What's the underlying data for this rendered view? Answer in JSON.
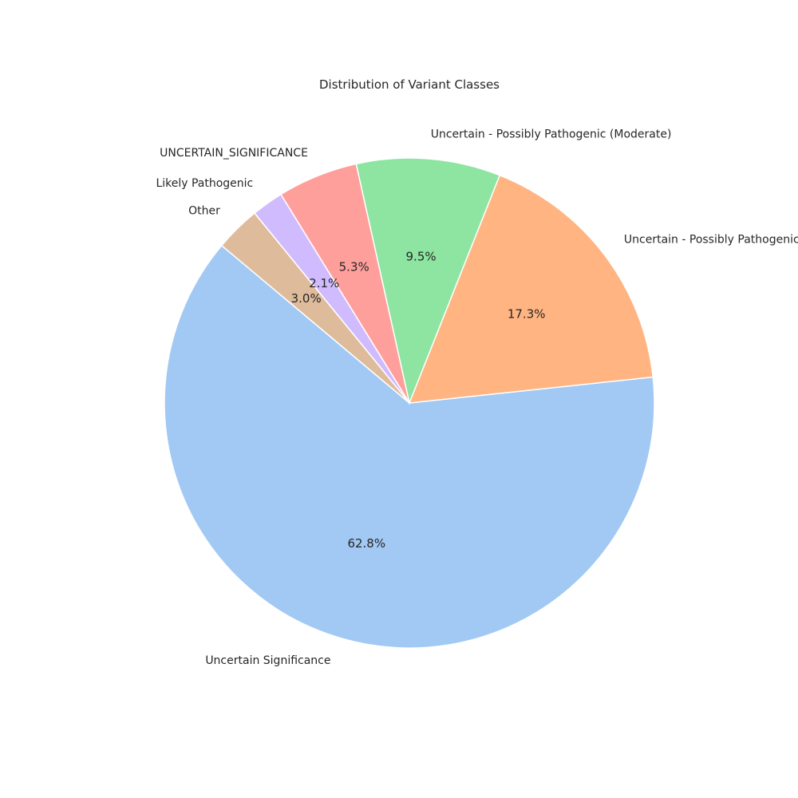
{
  "chart_data": {
    "type": "pie",
    "title": "Distribution of Variant Classes",
    "start_angle_deg": 140,
    "direction": "counterclockwise",
    "slices": [
      {
        "label": "Uncertain Significance",
        "value": 62.8,
        "pct_label": "62.8%",
        "color": "#a1c9f4"
      },
      {
        "label": "Uncertain - Possibly Pathogenic",
        "value": 17.3,
        "pct_label": "17.3%",
        "color": "#ffb482"
      },
      {
        "label": "Uncertain - Possibly Pathogenic (Moderate)",
        "value": 9.5,
        "pct_label": "9.5%",
        "color": "#8de5a1"
      },
      {
        "label": "UNCERTAIN_SIGNIFICANCE",
        "value": 5.3,
        "pct_label": "5.3%",
        "color": "#ff9f9b"
      },
      {
        "label": "Likely Pathogenic",
        "value": 2.1,
        "pct_label": "2.1%",
        "color": "#d0bbff"
      },
      {
        "label": "Other",
        "value": 3.0,
        "pct_label": "3.0%",
        "color": "#debb9b"
      }
    ]
  }
}
